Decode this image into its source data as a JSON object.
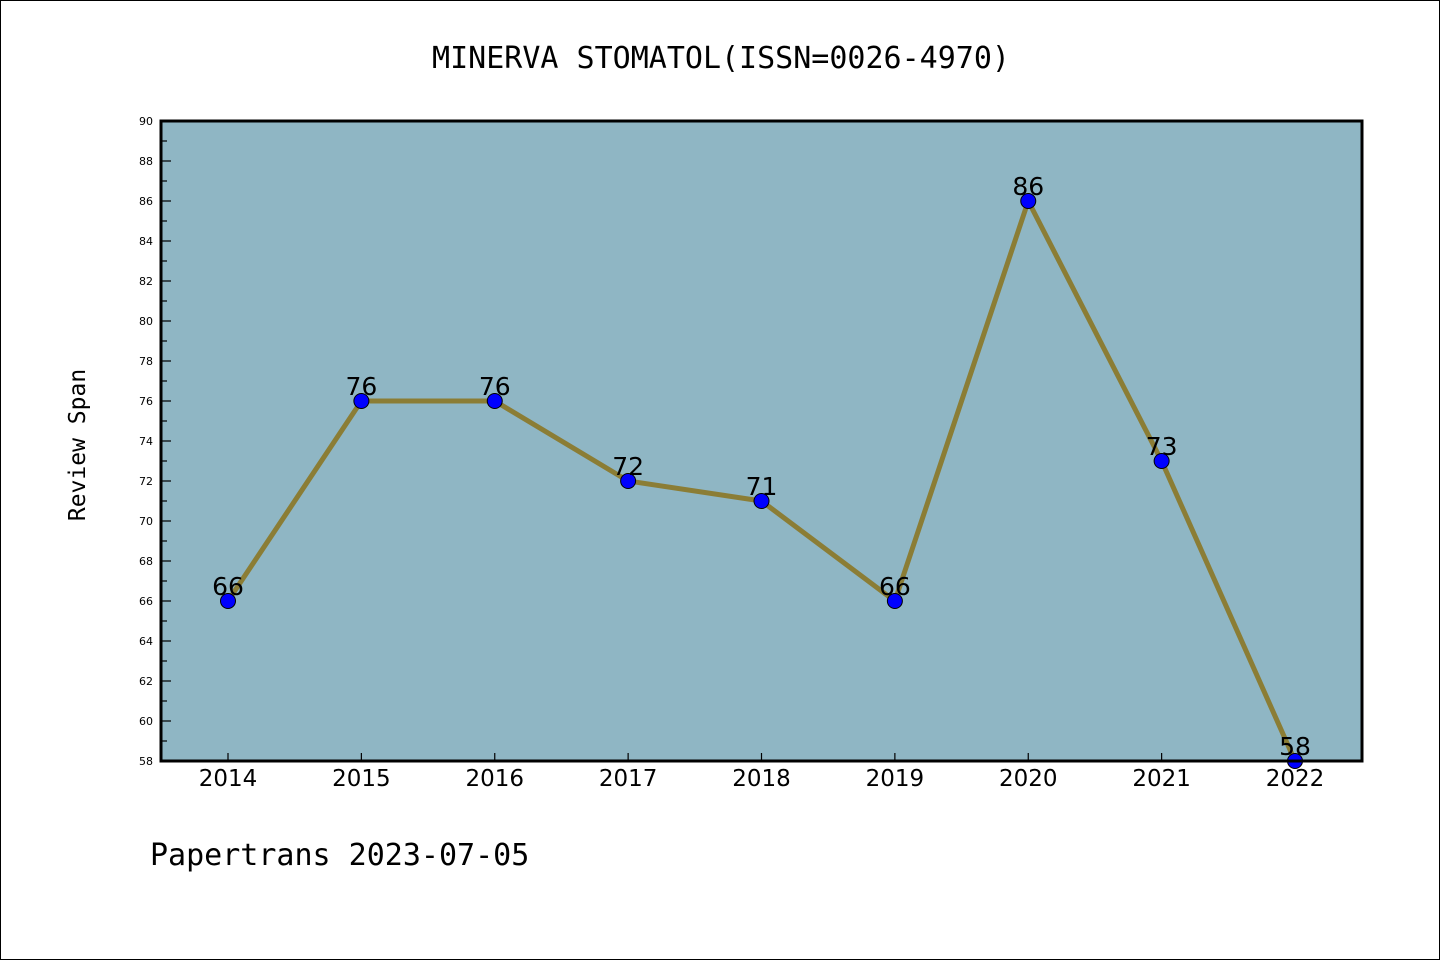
{
  "chart_data": {
    "type": "line",
    "title": "MINERVA STOMATOL(ISSN=0026-4970)",
    "ylabel": "Review Span",
    "xlabel": "",
    "categories": [
      "2014",
      "2015",
      "2016",
      "2017",
      "2018",
      "2019",
      "2020",
      "2021",
      "2022"
    ],
    "values": [
      66,
      76,
      76,
      72,
      71,
      66,
      86,
      73,
      58
    ],
    "ylim": [
      58,
      90
    ],
    "ytick_step": 2,
    "grid": false,
    "legend": "none",
    "colors": {
      "plot_background": "#8fb6c4",
      "line": "#8b7d35",
      "marker": "#0000ff"
    }
  },
  "footer": "Papertrans 2023-07-05"
}
